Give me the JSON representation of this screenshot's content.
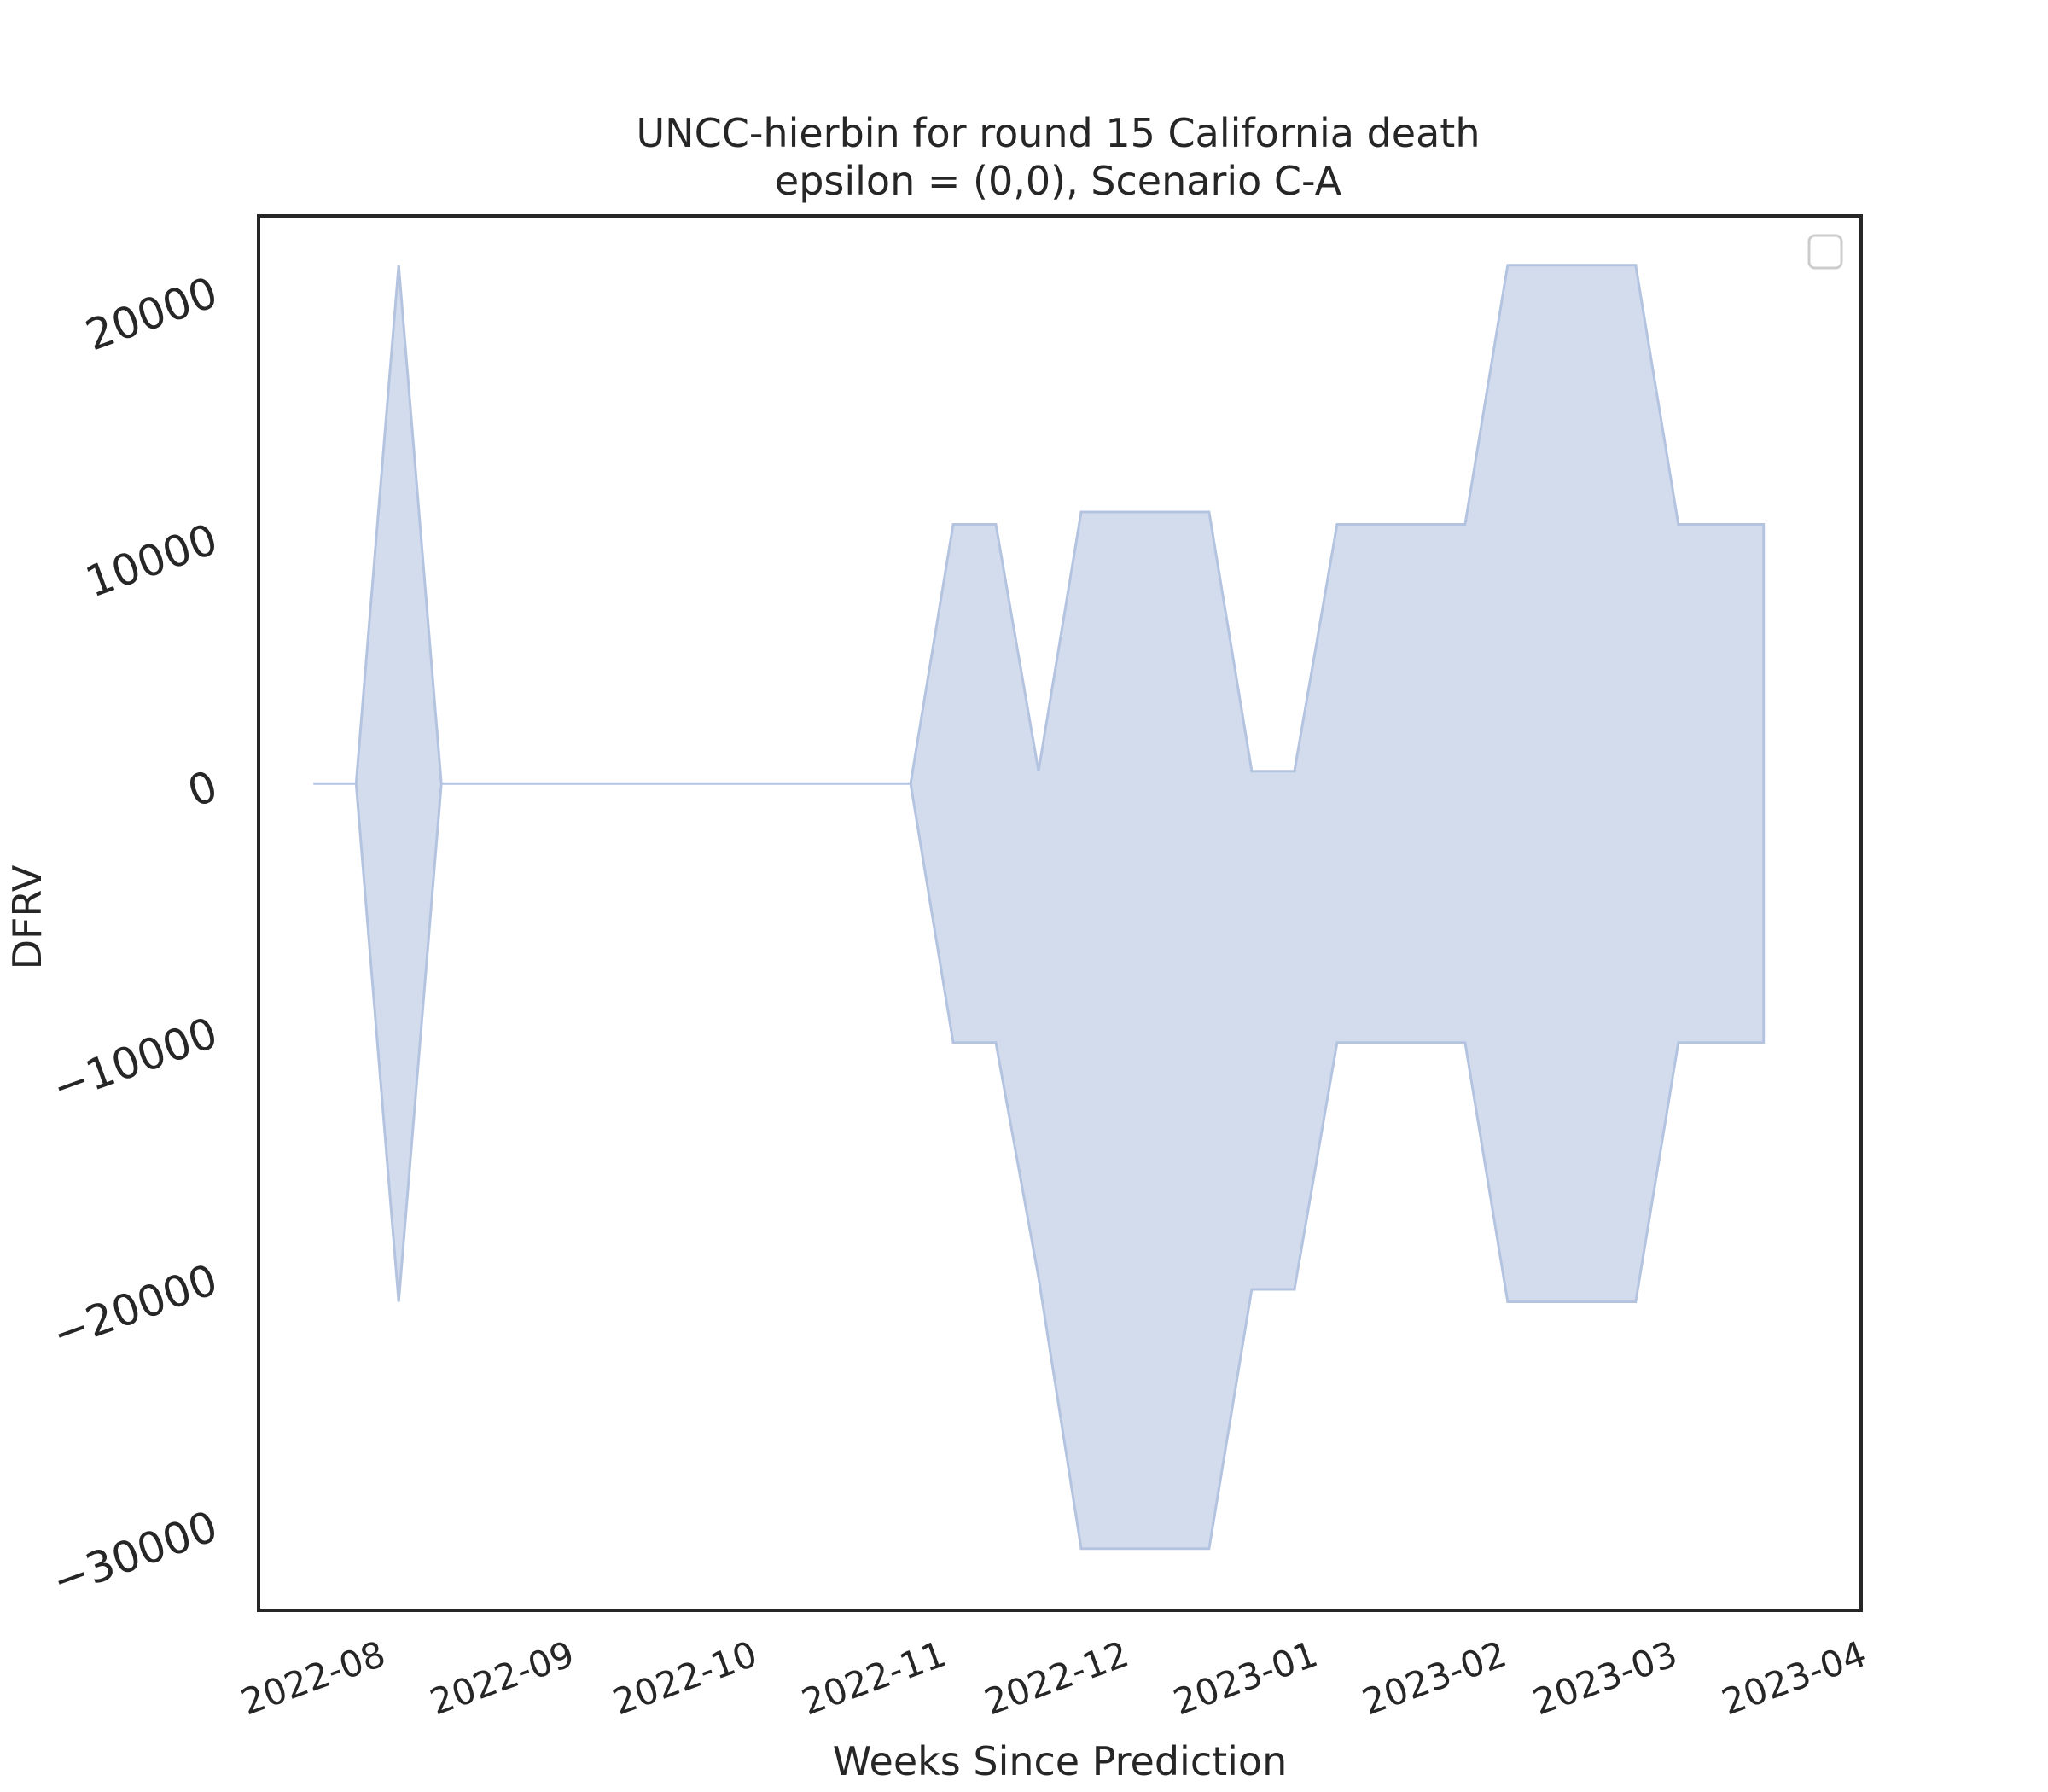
{
  "chart_data": {
    "type": "area",
    "title": "UNCC-hierbin for round 15 California death",
    "subtitle": "epsilon = (0,0), Scenario C-A",
    "xlabel": "Weeks Since Prediction",
    "ylabel": "DFRV",
    "x_tick_labels": [
      "2022-08",
      "2022-09",
      "2022-10",
      "2022-11",
      "2022-12",
      "2023-01",
      "2023-02",
      "2023-03",
      "2023-04"
    ],
    "y_tick_labels": [
      "20000",
      "10000",
      "0",
      "−10000",
      "−20000",
      "−30000"
    ],
    "y_ticks": [
      20000,
      10000,
      0,
      -10000,
      -20000,
      -30000
    ],
    "xlim": [
      "2022-07-15",
      "2023-04-04"
    ],
    "ylim": [
      -33500,
      23000
    ],
    "grid": false,
    "legend": {
      "placement": "top-right",
      "entries": []
    },
    "fill_color": "#b4c4e0",
    "fill_opacity": 0.6,
    "edge_color": "#b4c4e0",
    "series": [
      {
        "x": [
          "2022-07-24",
          "2022-07-31",
          "2022-08-07",
          "2022-08-14",
          "2022-08-21",
          "2022-08-28",
          "2022-09-04",
          "2022-09-11",
          "2022-09-18",
          "2022-09-25",
          "2022-10-02",
          "2022-10-09",
          "2022-10-16",
          "2022-10-23",
          "2022-10-30",
          "2022-11-06",
          "2022-11-13",
          "2022-11-20",
          "2022-11-27",
          "2022-12-04",
          "2022-12-11",
          "2022-12-18",
          "2022-12-25",
          "2023-01-01",
          "2023-01-08",
          "2023-01-15",
          "2023-01-22",
          "2023-01-29",
          "2023-02-05",
          "2023-02-12",
          "2023-02-19",
          "2023-02-26",
          "2023-03-05",
          "2023-03-12",
          "2023-03-19"
        ],
        "upper": [
          0,
          0,
          21000,
          0,
          0,
          0,
          0,
          0,
          0,
          0,
          0,
          0,
          0,
          0,
          0,
          10500,
          10500,
          500,
          11000,
          11000,
          11000,
          11000,
          500,
          500,
          10500,
          10500,
          10500,
          10500,
          21000,
          21000,
          21000,
          21000,
          10500,
          10500,
          10500
        ],
        "lower": [
          0,
          0,
          -21000,
          0,
          0,
          0,
          0,
          0,
          0,
          0,
          0,
          0,
          0,
          0,
          0,
          -10500,
          -10500,
          -20000,
          -31000,
          -31000,
          -31000,
          -31000,
          -20500,
          -20500,
          -10500,
          -10500,
          -10500,
          -10500,
          -21000,
          -21000,
          -21000,
          -21000,
          -10500,
          -10500,
          -10500
        ]
      }
    ]
  }
}
